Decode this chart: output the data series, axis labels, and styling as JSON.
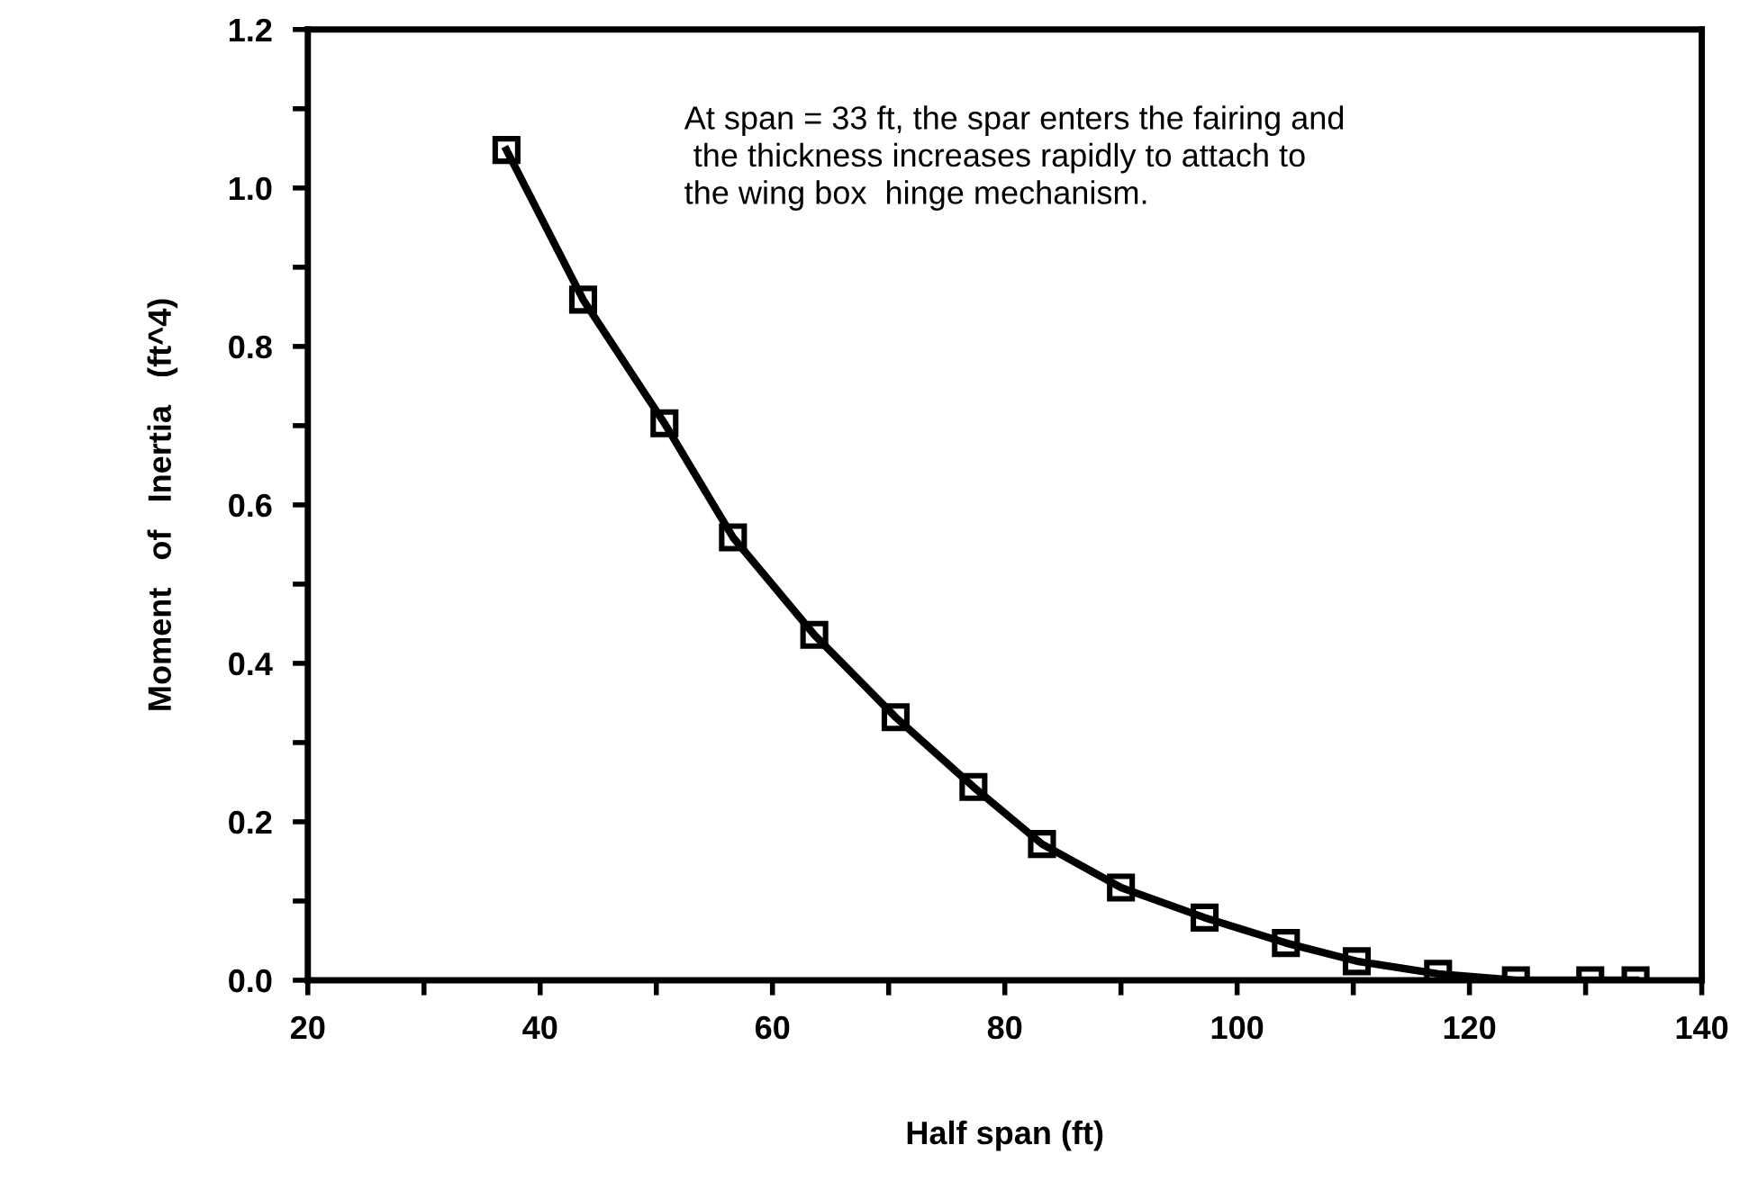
{
  "chart_data": {
    "type": "line",
    "xlabel": "Half span (ft)",
    "ylabel": "Moment   of   Inertia   (ft^4)",
    "x": [
      37.1,
      43.7,
      50.7,
      56.6,
      63.6,
      70.6,
      77.3,
      83.2,
      90.0,
      97.2,
      104.2,
      110.3,
      117.3,
      124.0,
      130.4,
      134.3
    ],
    "series": [
      {
        "color": "#000000",
        "values": [
          1.048,
          0.859,
          0.703,
          0.559,
          0.436,
          0.332,
          0.244,
          0.172,
          0.117,
          0.079,
          0.047,
          0.024,
          0.008,
          0.0,
          0.0,
          0.0
        ]
      }
    ],
    "marker": "square",
    "line_style": "solid",
    "grid": false,
    "legend": false,
    "xlim": [
      20,
      140
    ],
    "ylim": [
      0,
      1.2
    ],
    "xticks": [
      20,
      {
        "value": 30,
        "label": null
      },
      40,
      {
        "value": 50,
        "label": null
      },
      60,
      {
        "value": 70,
        "label": null
      },
      80,
      {
        "value": 90,
        "label": null
      },
      100,
      {
        "value": 110,
        "label": null
      },
      120,
      {
        "value": 130,
        "label": null
      },
      140
    ],
    "yticks": [
      {
        "value": 0,
        "label": "0.0"
      },
      {
        "value": 0.1,
        "label": null
      },
      {
        "value": 0.2,
        "label": "0.2"
      },
      {
        "value": 0.3,
        "label": null
      },
      {
        "value": 0.4,
        "label": "0.4"
      },
      {
        "value": 0.5,
        "label": null
      },
      {
        "value": 0.6,
        "label": "0.6"
      },
      {
        "value": 0.7,
        "label": null
      },
      {
        "value": 0.8,
        "label": "0.8"
      },
      {
        "value": 0.9,
        "label": null
      },
      {
        "value": 1.0,
        "label": "1.0"
      },
      {
        "value": 1.1,
        "label": null
      },
      {
        "value": 1.2,
        "label": "1.2"
      }
    ],
    "annotations": [
      "At span = 33 ft, the spar enters the fairing and\n the thickness increases rapidly to attach to\nthe wing box  hinge mechanism."
    ]
  }
}
